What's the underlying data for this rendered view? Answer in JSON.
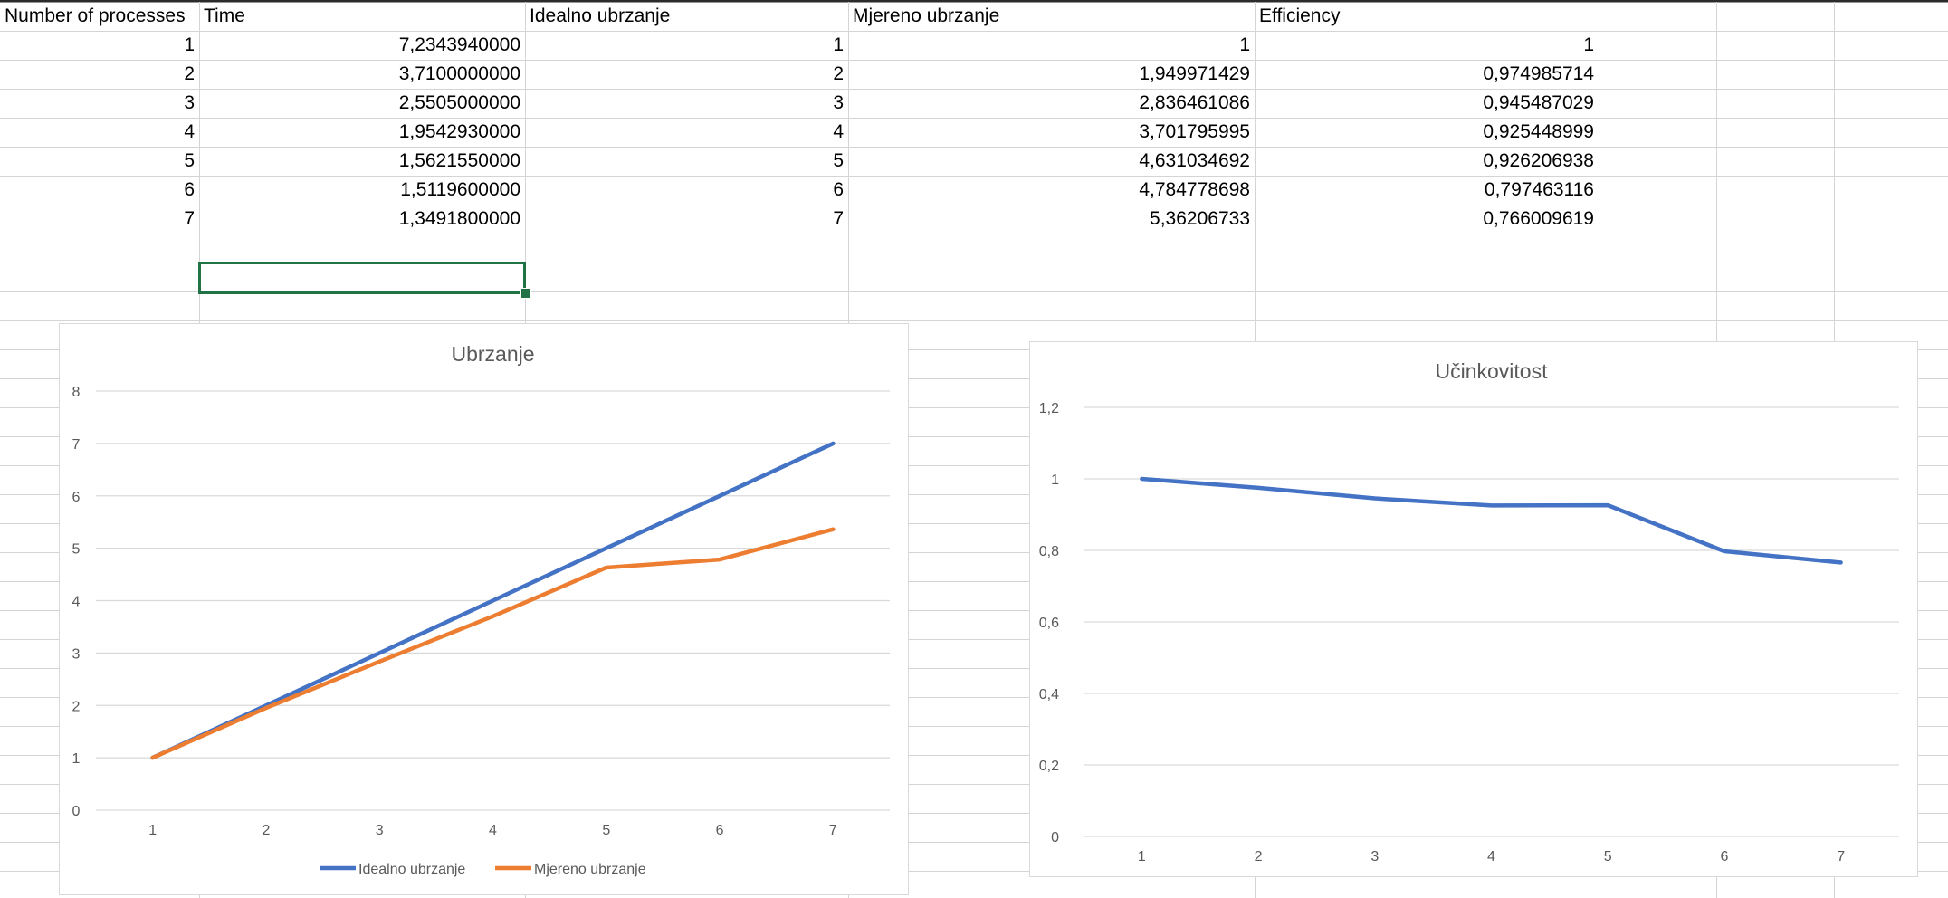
{
  "sheet": {
    "headers": [
      "Number of processes",
      "Time",
      "Idealno ubrzanje",
      "Mjereno ubrzanje",
      "Efficiency"
    ],
    "rows": [
      [
        "1",
        "7,2343940000",
        "1",
        "1",
        "1"
      ],
      [
        "2",
        "3,7100000000",
        "2",
        "1,949971429",
        "0,974985714"
      ],
      [
        "3",
        "2,5505000000",
        "3",
        "2,836461086",
        "0,945487029"
      ],
      [
        "4",
        "1,9542930000",
        "4",
        "3,701795995",
        "0,925448999"
      ],
      [
        "5",
        "1,5621550000",
        "5",
        "4,631034692",
        "0,926206938"
      ],
      [
        "6",
        "1,5119600000",
        "6",
        "4,784778698",
        "0,797463116"
      ],
      [
        "7",
        "1,3491800000",
        "7",
        "5,36206733",
        "0,766009619"
      ]
    ],
    "selected_cell": "B10"
  },
  "colors": {
    "gridline": "#d4d4d4",
    "selection": "#217346",
    "series_blue": "#4472c4",
    "series_orange": "#ed7d31",
    "chart_gridline": "#d9d9d9",
    "chart_text": "#595959"
  },
  "chart_data": [
    {
      "type": "line",
      "title": "Ubrzanje",
      "xlabel": "",
      "ylabel": "",
      "categories": [
        "1",
        "2",
        "3",
        "4",
        "5",
        "6",
        "7"
      ],
      "series": [
        {
          "name": "Idealno ubrzanje",
          "color": "#4472c4",
          "values": [
            1,
            2,
            3,
            4,
            5,
            6,
            7
          ]
        },
        {
          "name": "Mjereno ubrzanje",
          "color": "#ed7d31",
          "values": [
            1,
            1.949971429,
            2.836461086,
            3.701795995,
            4.631034692,
            4.784778698,
            5.36206733
          ]
        }
      ],
      "ylim": [
        0,
        8
      ],
      "yticks": [
        "0",
        "1",
        "2",
        "3",
        "4",
        "5",
        "6",
        "7",
        "8"
      ],
      "grid": true,
      "legend": "bottom"
    },
    {
      "type": "line",
      "title": "Učinkovitost",
      "xlabel": "",
      "ylabel": "",
      "categories": [
        "1",
        "2",
        "3",
        "4",
        "5",
        "6",
        "7"
      ],
      "series": [
        {
          "color": "#4472c4",
          "values": [
            1,
            0.974985714,
            0.945487029,
            0.925448999,
            0.926206938,
            0.797463116,
            0.766009619
          ]
        }
      ],
      "ylim": [
        0,
        1.2
      ],
      "yticks": [
        "0",
        "0,2",
        "0,4",
        "0,6",
        "0,8",
        "1",
        "1,2"
      ],
      "grid": true,
      "legend": "none"
    }
  ]
}
